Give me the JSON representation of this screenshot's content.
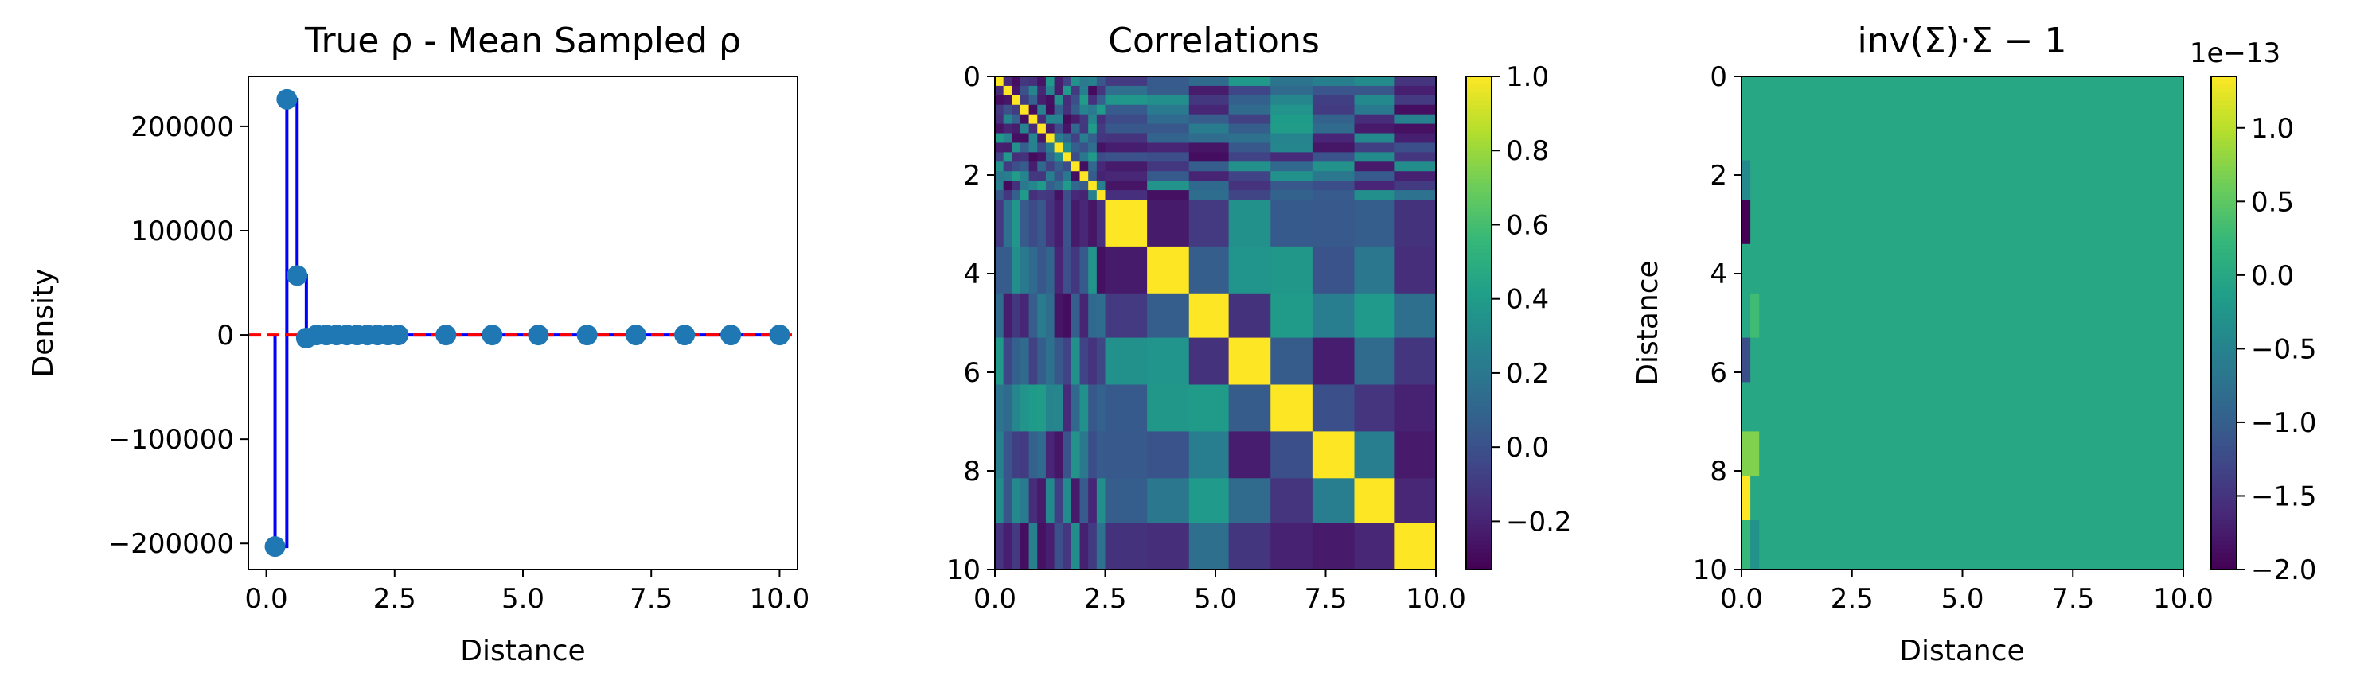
{
  "chart_data": [
    {
      "type": "line",
      "title": "True ρ - Mean Sampled ρ",
      "xlabel": "Distance",
      "ylabel": "Density",
      "xlim": [
        -0.35,
        10.35
      ],
      "ylim": [
        -225000,
        248000
      ],
      "xticks": [
        0.0,
        2.5,
        5.0,
        7.5,
        10.0
      ],
      "xtick_labels": [
        "0.0",
        "2.5",
        "5.0",
        "7.5",
        "10.0"
      ],
      "yticks": [
        -200000,
        -100000,
        0,
        100000,
        200000
      ],
      "ytick_labels": [
        "−200000",
        "−100000",
        "0",
        "100000",
        "200000"
      ],
      "grid": false,
      "series": [
        {
          "color": "#1f77b4",
          "line_color": "#0000ff",
          "x": [
            0.17,
            0.4,
            0.6,
            0.78,
            0.98,
            1.17,
            1.37,
            1.57,
            1.77,
            1.97,
            2.17,
            2.37,
            2.57,
            3.5,
            4.4,
            5.3,
            6.25,
            7.2,
            8.15,
            9.05,
            10.0
          ],
          "values": [
            -203000,
            226000,
            57000,
            -3000,
            0,
            0,
            0,
            0,
            0,
            0,
            0,
            0,
            0,
            0,
            0,
            0,
            0,
            0,
            0,
            0,
            0
          ]
        }
      ],
      "reference_line": {
        "y": 0,
        "color": "#ff0000",
        "style": "dashed"
      }
    },
    {
      "type": "heatmap",
      "title": "Correlations",
      "xlim": [
        0,
        10
      ],
      "ylim": [
        10,
        0
      ],
      "xticks": [
        0.0,
        2.5,
        5.0,
        7.5,
        10.0
      ],
      "xtick_labels": [
        "0.0",
        "2.5",
        "5.0",
        "7.5",
        "10.0"
      ],
      "yticks": [
        0,
        2,
        4,
        6,
        8,
        10
      ],
      "ytick_labels": [
        "0",
        "2",
        "4",
        "6",
        "8",
        "10"
      ],
      "colormap": "viridis",
      "colorbar": {
        "min": -0.33,
        "max": 1.0,
        "ticks": [
          -0.2,
          0.0,
          0.2,
          0.4,
          0.6,
          0.8,
          1.0
        ],
        "tick_labels": [
          "−0.2",
          "0.0",
          "0.2",
          "0.4",
          "0.6",
          "0.8",
          "1.0"
        ]
      }
    },
    {
      "type": "heatmap",
      "title": "inv(Σ)·Σ − 1",
      "xlabel": "Distance",
      "ylabel": "Distance",
      "xlim": [
        0,
        10
      ],
      "ylim": [
        10,
        0
      ],
      "xticks": [
        0.0,
        2.5,
        5.0,
        7.5,
        10.0
      ],
      "xtick_labels": [
        "0.0",
        "2.5",
        "5.0",
        "7.5",
        "10.0"
      ],
      "yticks": [
        0,
        2,
        4,
        6,
        8,
        10
      ],
      "ytick_labels": [
        "0",
        "2",
        "4",
        "6",
        "8",
        "10"
      ],
      "colormap": "viridis",
      "background_value": 0.0,
      "colorbar": {
        "min": -2.0,
        "max": 1.35,
        "ticks": [
          -2.0,
          -1.5,
          -1.0,
          -0.5,
          0.0,
          0.5,
          1.0
        ],
        "tick_labels": [
          "−2.0",
          "−1.5",
          "−1.0",
          "−0.5",
          "0.0",
          "0.5",
          "1.0"
        ],
        "offset_label": "1e−13"
      },
      "highlights": [
        {
          "x0": 0.0,
          "x1": 0.2,
          "y0": 2.5,
          "y1": 3.4,
          "value": -2.0
        },
        {
          "x0": 0.0,
          "x1": 0.2,
          "y0": 5.3,
          "y1": 6.2,
          "value": -1.2
        },
        {
          "x0": 0.0,
          "x1": 0.2,
          "y0": 8.1,
          "y1": 9.0,
          "value": 1.35
        },
        {
          "x0": 0.0,
          "x1": 0.4,
          "y0": 7.2,
          "y1": 8.1,
          "value": 0.7
        },
        {
          "x0": 0.0,
          "x1": 0.2,
          "y0": 9.0,
          "y1": 10.0,
          "value": 0.25
        },
        {
          "x0": 0.0,
          "x1": 0.2,
          "y0": 1.7,
          "y1": 2.5,
          "value": -0.4
        },
        {
          "x0": 0.2,
          "x1": 0.4,
          "y0": 4.4,
          "y1": 5.3,
          "value": 0.3
        },
        {
          "x0": 0.2,
          "x1": 0.4,
          "y0": 9.0,
          "y1": 10.0,
          "value": -0.3
        }
      ]
    }
  ]
}
